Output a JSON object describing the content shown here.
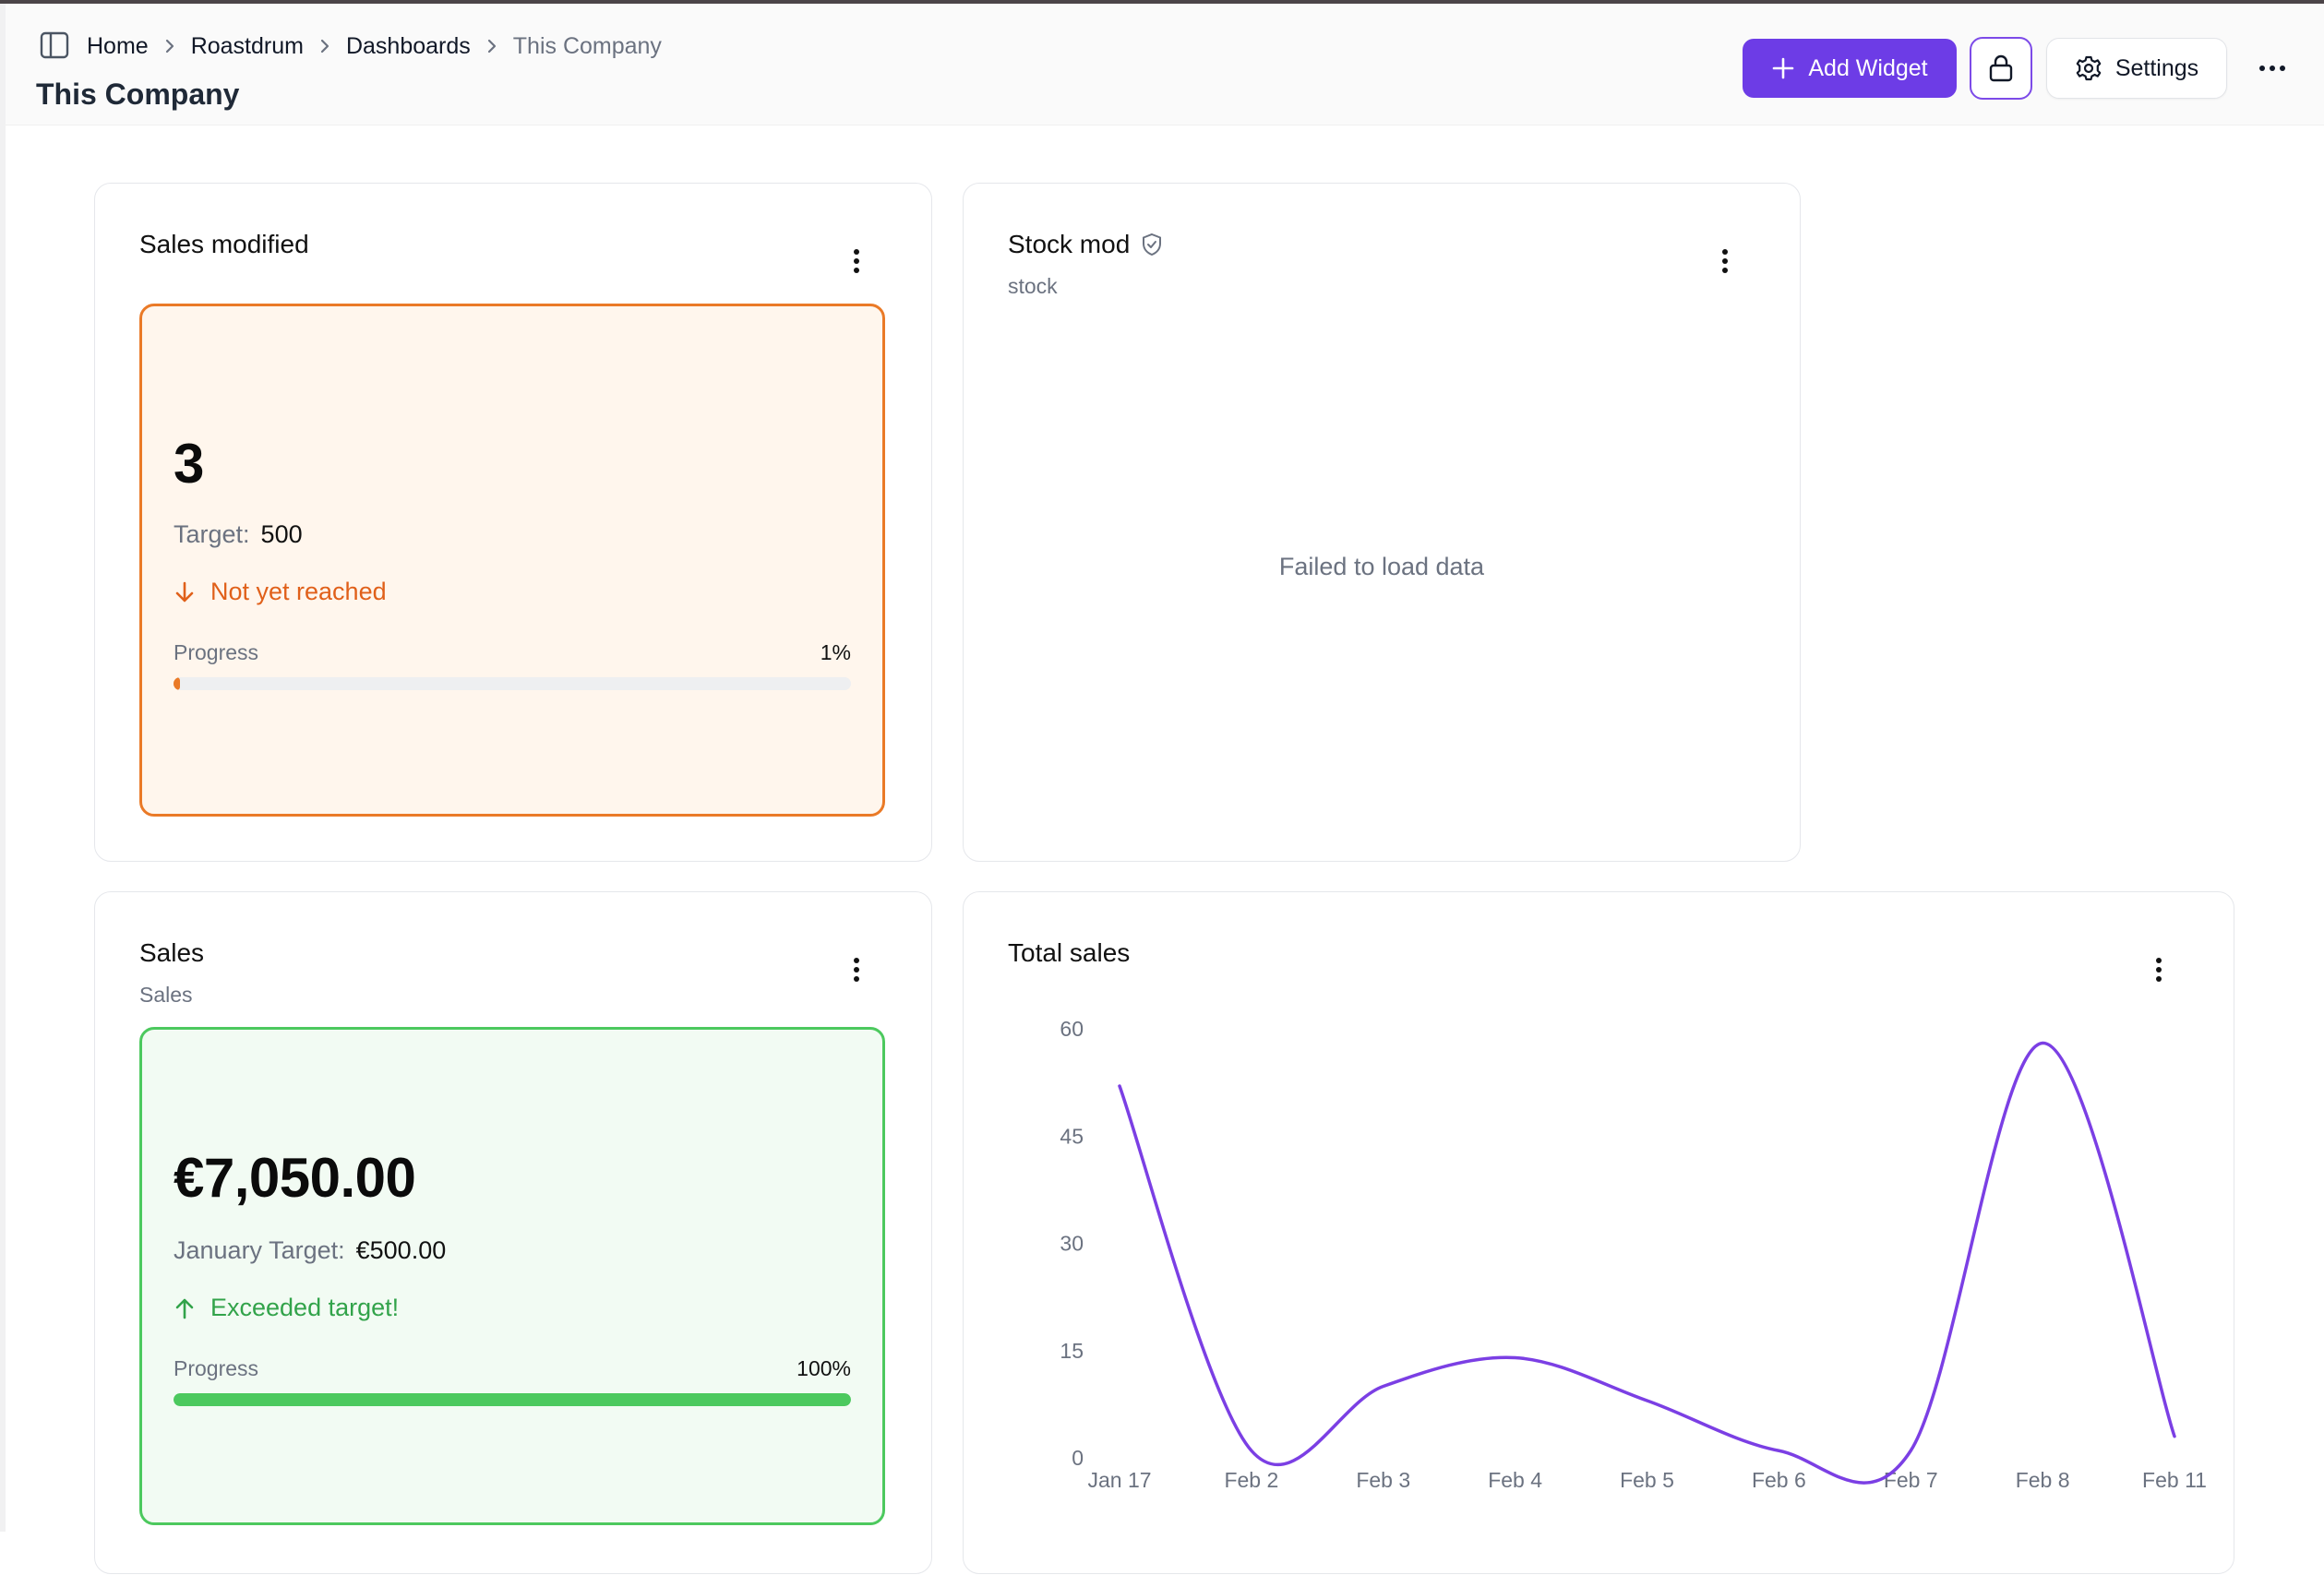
{
  "breadcrumb": [
    {
      "label": "Home"
    },
    {
      "label": "Roastdrum"
    },
    {
      "label": "Dashboards"
    },
    {
      "label": "This Company"
    }
  ],
  "page_title": "This Company",
  "toolbar": {
    "add_widget_label": "Add Widget",
    "settings_label": "Settings",
    "accent_color": "#6d3ce6"
  },
  "widgets": {
    "sales_modified": {
      "title": "Sales modified",
      "value": "3",
      "target_label": "Target:",
      "target_value": "500",
      "status": "Not yet reached",
      "progress_label": "Progress",
      "progress_text": "1%",
      "progress_fraction": 0.01,
      "status_color": "#ea7a27"
    },
    "stock_mod": {
      "title": "Stock mod",
      "subtitle": "stock",
      "message": "Failed to load data"
    },
    "sales": {
      "title": "Sales",
      "subtitle": "Sales",
      "value": "€7,050.00",
      "target_label": "January Target:",
      "target_value": "€500.00",
      "status": "Exceeded target!",
      "progress_label": "Progress",
      "progress_text": "100%",
      "progress_fraction": 1.0,
      "status_color": "#4cc95e"
    },
    "total_sales": {
      "title": "Total sales"
    }
  },
  "chart_data": {
    "type": "line",
    "title": "Total sales",
    "categories": [
      "Jan 17",
      "Feb 2",
      "Feb 3",
      "Feb 4",
      "Feb 5",
      "Feb 6",
      "Feb 7",
      "Feb 8",
      "Feb 11"
    ],
    "values": [
      52,
      1,
      10,
      14,
      8,
      1,
      1,
      58,
      3
    ],
    "yticks": [
      "0",
      "15",
      "30",
      "45",
      "60"
    ],
    "ylim": [
      0,
      60
    ],
    "grid": false,
    "line_color": "#7b3fe4"
  }
}
